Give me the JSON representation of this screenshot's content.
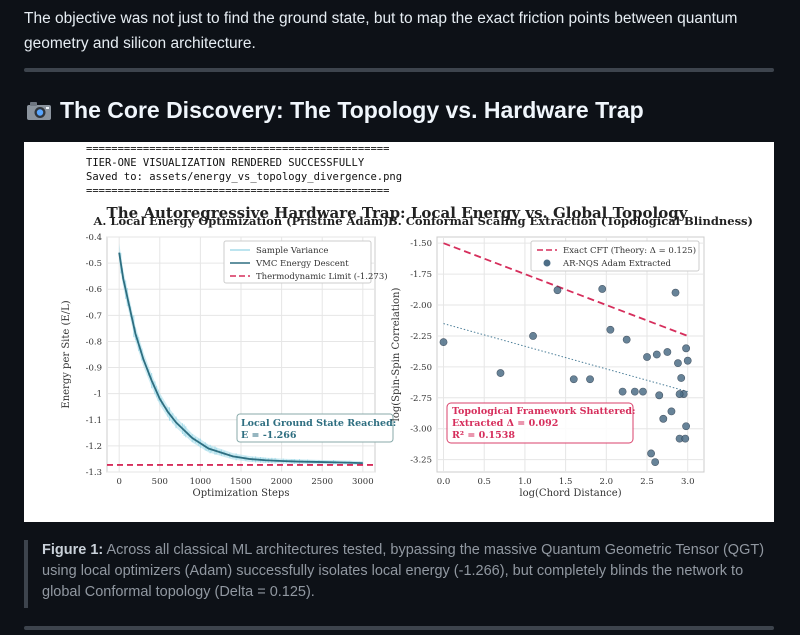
{
  "intro_text": "The objective was not just to find the ground state, but to map the exact friction points between quantum geometry and silicon architecture.",
  "section": {
    "icon": "camera-icon",
    "title": "The Core Discovery: The Topology vs. Hardware Trap"
  },
  "console": {
    "rule": "================================================",
    "line1": "TIER-ONE VISUALIZATION RENDERED SUCCESSFULLY",
    "line2": "Saved to: assets/energy_vs_topology_divergence.png"
  },
  "figure": {
    "suptitle": "The Autoregressive Hardware Trap: Local Energy vs. Global Topology"
  },
  "chart_data": [
    {
      "type": "line",
      "title": "A. Local Energy Optimization (Pristine Adam)",
      "xlabel": "Optimization Steps",
      "ylabel": "Energy per Site (E/L)",
      "xlim": [
        -150,
        3150
      ],
      "ylim": [
        -1.3,
        -0.4
      ],
      "xticks": [
        0,
        500,
        1000,
        1500,
        2000,
        2500,
        3000
      ],
      "yticks": [
        -1.3,
        -1.2,
        -1.1,
        -1.0,
        -0.9,
        -0.8,
        -0.7,
        -0.6,
        -0.5,
        -0.4
      ],
      "series": [
        {
          "name": "Sample Variance",
          "style": "band"
        },
        {
          "name": "VMC Energy Descent",
          "style": "line",
          "x": [
            0,
            50,
            100,
            200,
            300,
            400,
            500,
            600,
            700,
            800,
            900,
            1000,
            1100,
            1200,
            1300,
            1400,
            1500,
            1600,
            1800,
            2000,
            2200,
            2500,
            2800,
            3000
          ],
          "y": [
            -0.46,
            -0.56,
            -0.63,
            -0.77,
            -0.87,
            -0.95,
            -1.02,
            -1.07,
            -1.11,
            -1.14,
            -1.17,
            -1.19,
            -1.21,
            -1.22,
            -1.23,
            -1.24,
            -1.245,
            -1.25,
            -1.255,
            -1.258,
            -1.26,
            -1.262,
            -1.264,
            -1.266
          ]
        },
        {
          "name": "Thermodynamic Limit (-1.273)",
          "style": "dashed",
          "y": -1.273
        }
      ],
      "annotation": {
        "line1": "Local Ground State Reached:",
        "line2": "E = -1.266"
      },
      "legend": "top-right",
      "grid": true,
      "colors": {
        "line": "#2e6e80",
        "band": "#a6dcea",
        "limit": "#d62e5c"
      }
    },
    {
      "type": "scatter",
      "title": "B. Conformal Scaling Extraction (Topological Blindness)",
      "xlabel": "log(Chord Distance)",
      "ylabel": "log(Spin-Spin Correlation)",
      "xlim": [
        -0.08,
        3.2
      ],
      "ylim": [
        -3.35,
        -1.45
      ],
      "xticks": [
        0.0,
        0.5,
        1.0,
        1.5,
        2.0,
        2.5,
        3.0
      ],
      "yticks": [
        -1.5,
        -1.75,
        -2.0,
        -2.25,
        -2.5,
        -2.75,
        -3.0,
        -3.25
      ],
      "series": [
        {
          "name": "Exact CFT (Theory: Δ = 0.125)",
          "style": "dashed",
          "x": [
            0.0,
            3.0
          ],
          "y": [
            -1.5,
            -2.25
          ]
        },
        {
          "name": "AR-NQS Adam Extracted",
          "style": "points",
          "x": [
            0.0,
            0.7,
            1.1,
            1.4,
            1.6,
            1.8,
            1.95,
            2.05,
            2.2,
            2.25,
            2.35,
            2.45,
            2.5,
            2.55,
            2.6,
            2.62,
            2.65,
            2.7,
            2.75,
            2.8,
            2.85,
            2.88,
            2.9,
            2.92,
            2.95,
            2.97,
            2.98,
            3.0,
            2.9,
            2.98
          ],
          "y": [
            -2.3,
            -2.55,
            -2.25,
            -1.88,
            -2.6,
            -2.6,
            -1.87,
            -2.2,
            -2.7,
            -2.28,
            -2.7,
            -2.7,
            -2.42,
            -3.2,
            -3.27,
            -2.4,
            -2.73,
            -2.92,
            -2.38,
            -2.86,
            -1.9,
            -2.47,
            -3.08,
            -2.59,
            -2.72,
            -3.08,
            -2.35,
            -2.45,
            -2.72,
            -2.98
          ]
        },
        {
          "name": "fit",
          "style": "dotted",
          "x": [
            0.0,
            3.0
          ],
          "y": [
            -2.15,
            -2.7
          ]
        }
      ],
      "annotation": {
        "line1": "Topological Framework Shattered:",
        "line2": "Extracted Δ = 0.092",
        "line3": "R² = 0.1538"
      },
      "legend": "top-right",
      "grid": true,
      "colors": {
        "theory": "#d62e5c",
        "points": "#4d6e87",
        "fit": "#4d7f99"
      }
    }
  ],
  "caption": {
    "label": "Figure 1:",
    "text": " Across all classical ML architectures tested, bypassing the massive Quantum Geometric Tensor (QGT) using local optimizers (Adam) successfully isolates local energy (-1.266), but completely blinds the network to global Conformal topology (Delta = 0.125)."
  }
}
